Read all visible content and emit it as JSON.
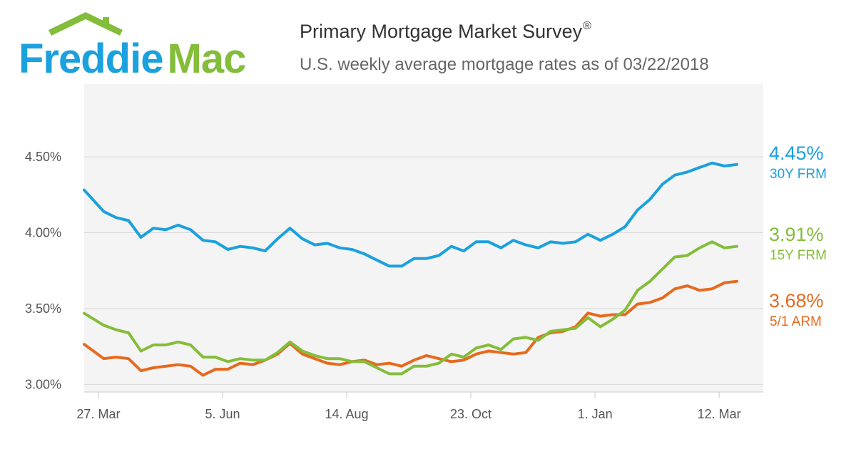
{
  "logo": {
    "text_freddie": "Freddie",
    "text_mac": "Mac",
    "blue": "#1ba1dd",
    "green": "#84bd3a"
  },
  "header": {
    "title": "Primary Mortgage Market Survey",
    "registered_mark": "®",
    "subtitle": "U.S. weekly average mortgage rates as of 03/22/2018"
  },
  "chart_data": {
    "type": "line",
    "title": "Primary Mortgage Market Survey",
    "subtitle": "U.S. weekly average mortgage rates as of 03/22/2018",
    "xlabel": "",
    "ylabel": "",
    "ylim": [
      2.95,
      4.98
    ],
    "x_start": "2017-03-23",
    "x_step_days": 7,
    "x_ticks": [
      {
        "date": "2017-03-27",
        "label": "27. Mar"
      },
      {
        "date": "2017-06-05",
        "label": "5. Jun"
      },
      {
        "date": "2017-08-14",
        "label": "14. Aug"
      },
      {
        "date": "2017-10-23",
        "label": "23. Oct"
      },
      {
        "date": "2018-01-01",
        "label": "1. Jan"
      },
      {
        "date": "2018-03-12",
        "label": "12. Mar"
      }
    ],
    "y_ticks": [
      {
        "value": 3.0,
        "label": "3.00%"
      },
      {
        "value": 3.5,
        "label": "3.50%"
      },
      {
        "value": 4.0,
        "label": "4.00%"
      },
      {
        "value": 4.5,
        "label": "4.50%"
      }
    ],
    "grid": "horizontal",
    "series": [
      {
        "name": "30Y FRM",
        "color": "#1ba1dd",
        "end_label": "4.45%",
        "values": [
          4.23,
          4.14,
          4.1,
          4.08,
          3.97,
          4.03,
          4.02,
          4.05,
          4.02,
          3.95,
          3.94,
          3.89,
          3.91,
          3.9,
          3.88,
          3.96,
          4.03,
          3.96,
          3.92,
          3.93,
          3.9,
          3.89,
          3.86,
          3.82,
          3.78,
          3.78,
          3.83,
          3.83,
          3.85,
          3.91,
          3.88,
          3.94,
          3.94,
          3.9,
          3.95,
          3.92,
          3.9,
          3.94,
          3.93,
          3.94,
          3.99,
          3.95,
          3.99,
          4.04,
          4.15,
          4.22,
          4.32,
          4.38,
          4.4,
          4.43,
          4.46,
          4.44,
          4.45
        ]
      },
      {
        "name": "15Y FRM",
        "color": "#84bd3a",
        "end_label": "3.91%",
        "values": [
          3.44,
          3.39,
          3.36,
          3.34,
          3.22,
          3.26,
          3.26,
          3.28,
          3.26,
          3.18,
          3.18,
          3.15,
          3.17,
          3.16,
          3.16,
          3.21,
          3.28,
          3.22,
          3.19,
          3.17,
          3.17,
          3.15,
          3.15,
          3.11,
          3.07,
          3.07,
          3.12,
          3.12,
          3.14,
          3.2,
          3.18,
          3.24,
          3.26,
          3.23,
          3.3,
          3.31,
          3.29,
          3.35,
          3.36,
          3.37,
          3.44,
          3.38,
          3.43,
          3.49,
          3.62,
          3.68,
          3.76,
          3.84,
          3.85,
          3.9,
          3.94,
          3.9,
          3.91
        ]
      },
      {
        "name": "5/1 ARM",
        "color": "#e66a1e",
        "end_label": "3.68%",
        "values": [
          3.23,
          3.17,
          3.18,
          3.17,
          3.09,
          3.11,
          3.12,
          3.13,
          3.12,
          3.06,
          3.1,
          3.1,
          3.14,
          3.13,
          3.16,
          3.2,
          3.27,
          3.2,
          3.17,
          3.14,
          3.13,
          3.15,
          3.16,
          3.13,
          3.14,
          3.12,
          3.16,
          3.19,
          3.17,
          3.15,
          3.16,
          3.2,
          3.22,
          3.21,
          3.2,
          3.21,
          3.31,
          3.34,
          3.35,
          3.38,
          3.47,
          3.45,
          3.46,
          3.46,
          3.53,
          3.54,
          3.57,
          3.63,
          3.65,
          3.62,
          3.63,
          3.67,
          3.68
        ]
      }
    ]
  }
}
